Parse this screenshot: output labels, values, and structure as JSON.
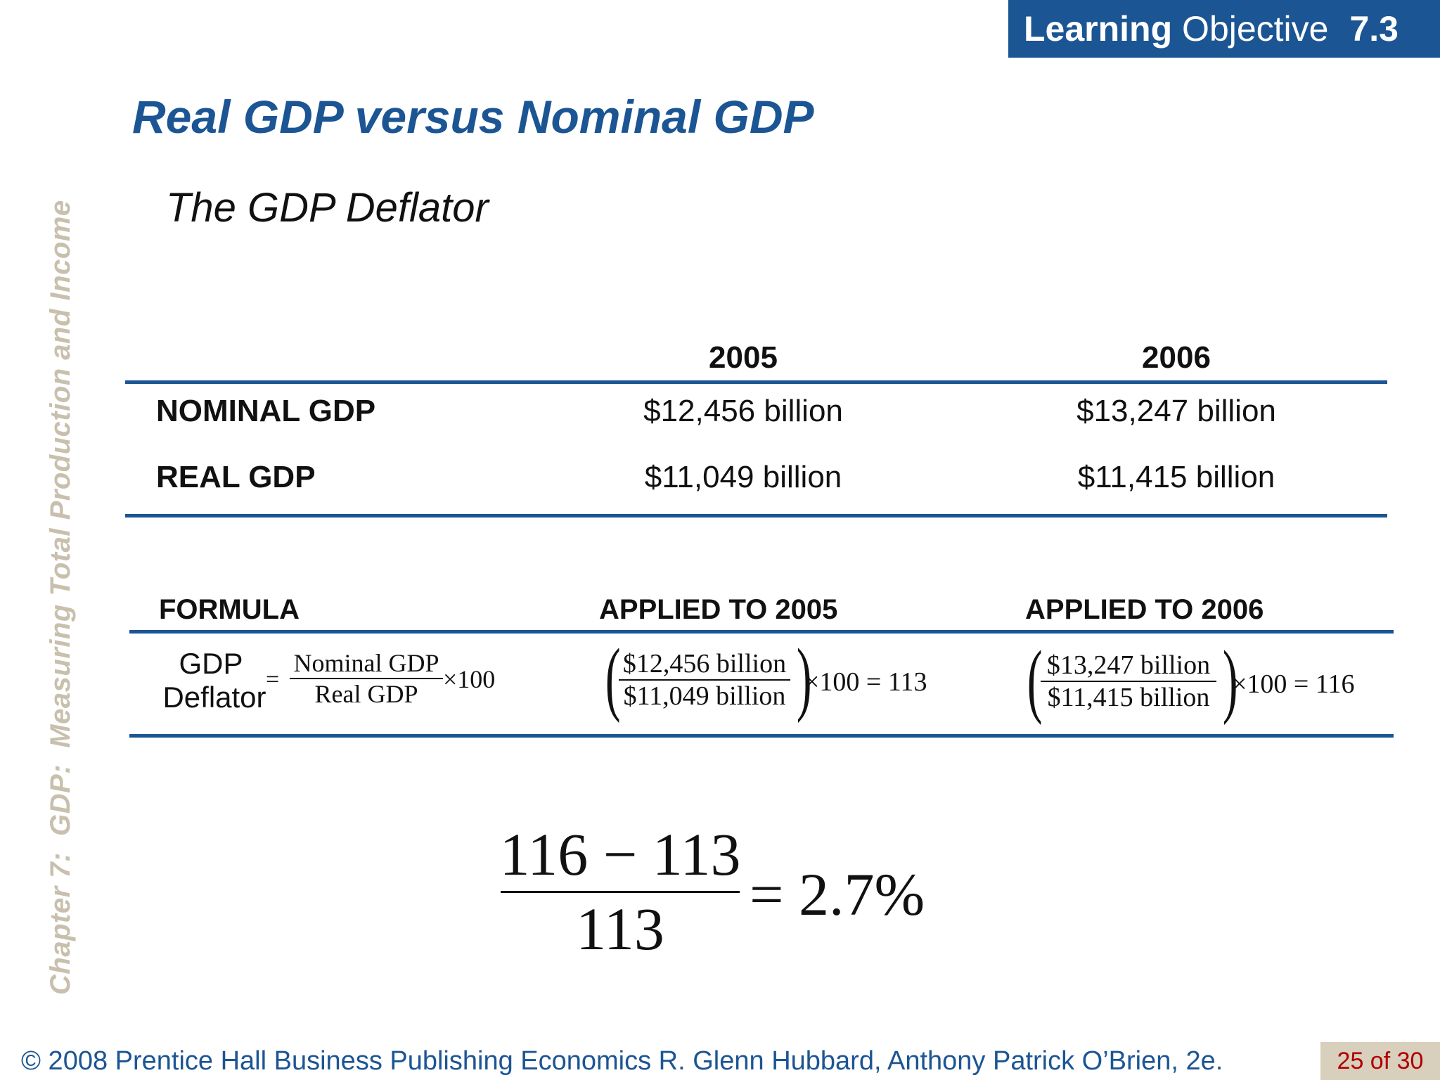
{
  "header": {
    "learning_label_bold": "Learning",
    "learning_label_rest": "Objective",
    "objective_number": "7.3"
  },
  "sidebar": {
    "chapter_text": "Chapter 7:  GDP:  Measuring Total Production and Income"
  },
  "slide": {
    "title": "Real GDP versus Nominal GDP",
    "subtitle": "The GDP Deflator"
  },
  "gdp_table": {
    "columns": [
      "2005",
      "2006"
    ],
    "rows": [
      {
        "label": "NOMINAL GDP",
        "values": [
          "$12,456 billion",
          "$13,247 billion"
        ]
      },
      {
        "label": "REAL GDP",
        "values": [
          "$11,049 billion",
          "$11,415 billion"
        ]
      }
    ]
  },
  "formula_table": {
    "headers": [
      "FORMULA",
      "APPLIED TO 2005",
      "APPLIED TO 2006"
    ],
    "formula": {
      "label_line1": "GDP",
      "label_line2": "Deflator",
      "equals": "=",
      "numerator": "Nominal GDP",
      "denominator": "Real GDP",
      "times": "×100"
    },
    "applied_2005": {
      "numerator": "$12,456 billion",
      "denominator": "$11,049 billion",
      "result": "×100 = 113"
    },
    "applied_2006": {
      "numerator": "$13,247 billion",
      "denominator": "$11,415 billion",
      "result": "×100 = 116"
    }
  },
  "inflation_calc": {
    "numerator": "116 − 113",
    "denominator": "113",
    "result": "= 2.7%"
  },
  "footer": {
    "text": "© 2008 Prentice Hall Business Publishing   Economics  R. Glenn Hubbard, Anthony Patrick O’Brien, 2e.",
    "page": "25 of 30"
  }
}
